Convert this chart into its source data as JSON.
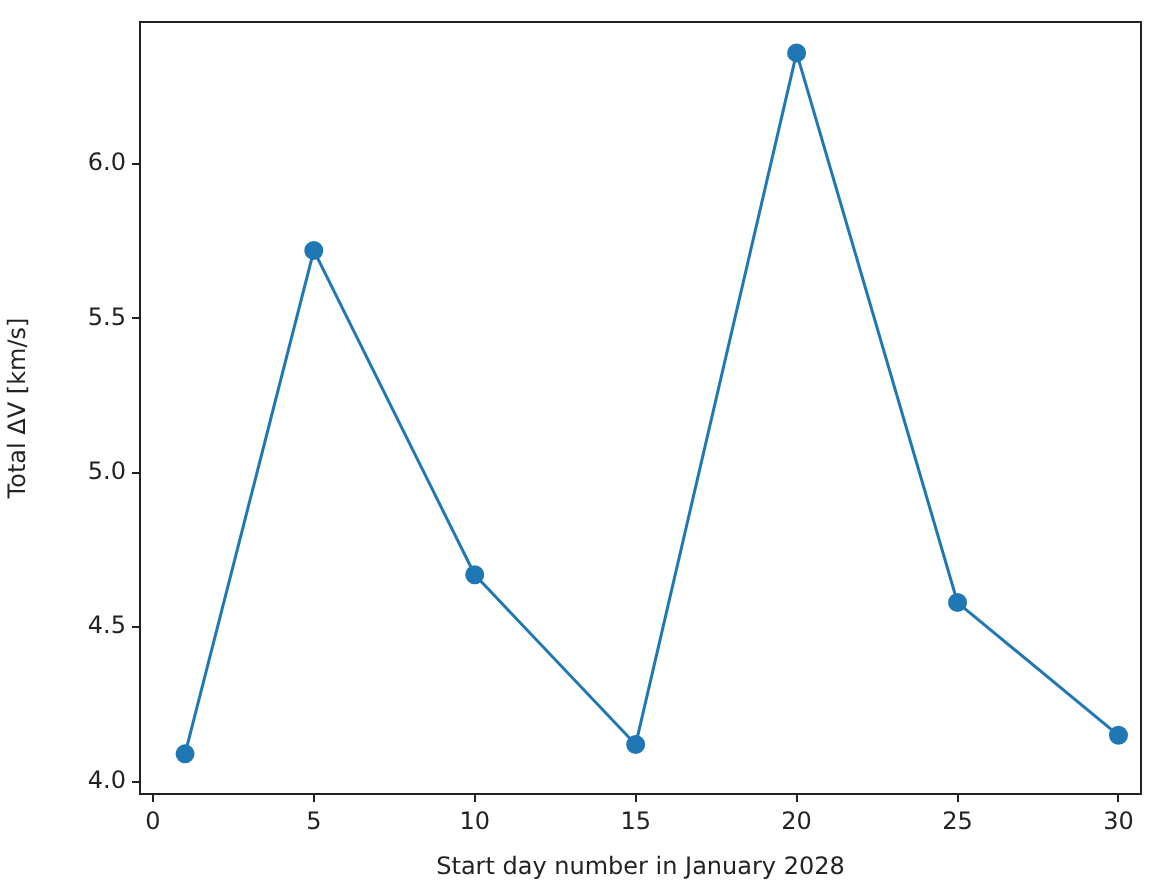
{
  "chart_data": {
    "type": "line",
    "xlabel": "Start day number in January 2028",
    "ylabel": "Total ΔV [km/s]",
    "x": [
      1,
      5,
      10,
      15,
      20,
      25,
      30
    ],
    "series": [
      {
        "color": "#1f77b4",
        "values": [
          4.09,
          5.72,
          4.67,
          4.12,
          6.36,
          4.58,
          4.15
        ]
      }
    ],
    "xlim": [
      -0.4,
      30.7
    ],
    "xticks": [
      0,
      5,
      10,
      15,
      20,
      25,
      30
    ],
    "ylim": [
      3.96,
      6.46
    ],
    "yticks": [
      {
        "value": 4,
        "label": "4.0"
      },
      {
        "value": 4.5,
        "label": "4.5"
      },
      {
        "value": 5,
        "label": "5.0"
      },
      {
        "value": 5.5,
        "label": "5.5"
      },
      {
        "value": 6,
        "label": "6.0"
      }
    ],
    "grid": false,
    "legend": false,
    "marker": "circle",
    "line_style": "solid"
  }
}
